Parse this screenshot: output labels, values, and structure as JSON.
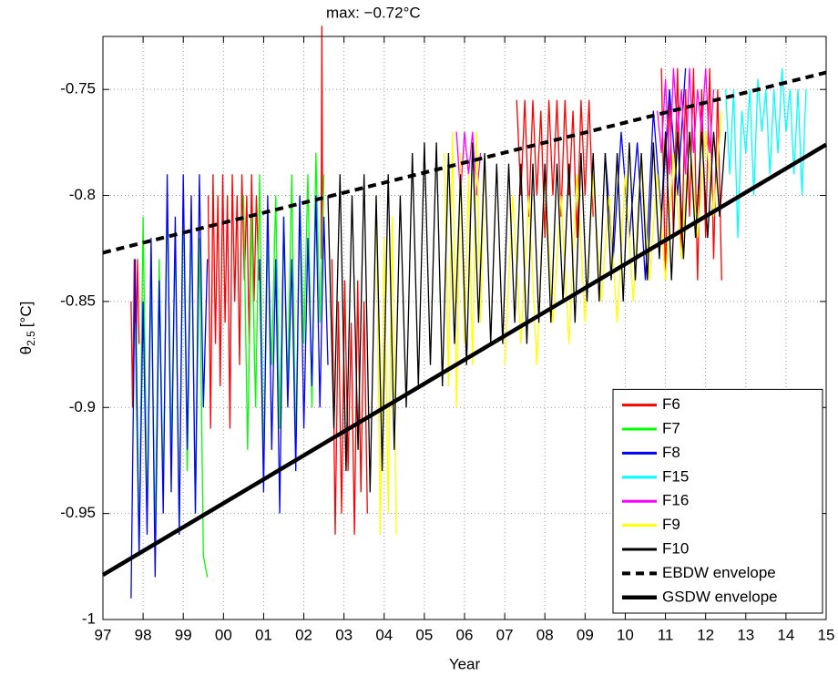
{
  "chart_data": {
    "type": "line",
    "xlabel": "Year",
    "ylabel": "θ",
    "ylabel_sub": "2.5",
    "ylabel_unit": "[°C]",
    "annotation": "max: −0.72°C",
    "grid": true,
    "legend": "lower right",
    "xlim": [
      1997,
      2015
    ],
    "ylim": [
      -1,
      -0.725
    ],
    "xticks": [
      {
        "value": 1997,
        "label": "97"
      },
      {
        "value": 1998,
        "label": "98"
      },
      {
        "value": 1999,
        "label": "99"
      },
      {
        "value": 2000,
        "label": "00"
      },
      {
        "value": 2001,
        "label": "01"
      },
      {
        "value": 2002,
        "label": "02"
      },
      {
        "value": 2003,
        "label": "03"
      },
      {
        "value": 2004,
        "label": "04"
      },
      {
        "value": 2005,
        "label": "05"
      },
      {
        "value": 2006,
        "label": "06"
      },
      {
        "value": 2007,
        "label": "07"
      },
      {
        "value": 2008,
        "label": "08"
      },
      {
        "value": 2009,
        "label": "09"
      },
      {
        "value": 2010,
        "label": "10"
      },
      {
        "value": 2011,
        "label": "11"
      },
      {
        "value": 2012,
        "label": "12"
      },
      {
        "value": 2013,
        "label": "13"
      },
      {
        "value": 2014,
        "label": "14"
      },
      {
        "value": 2015,
        "label": "15"
      }
    ],
    "yticks": [
      -1,
      -0.95,
      -0.9,
      -0.85,
      -0.8,
      -0.75
    ],
    "series": [
      {
        "name": "F6",
        "color": "#ff0000",
        "style": "solid",
        "x": [
          1997.7,
          1997.74,
          1997.78,
          1997.82,
          1997.86,
          1997.9,
          null,
          1999.62,
          1999.68,
          1999.74,
          1999.8,
          1999.86,
          1999.92,
          1999.98,
          2000.04,
          2000.1,
          2000.16,
          2000.22,
          2000.28,
          2000.34,
          2000.4,
          2000.46,
          2000.52,
          2000.58,
          2000.64,
          2000.7,
          2000.76,
          2000.82,
          2000.88,
          null,
          2002.43,
          2002.45,
          2002.47,
          null,
          2002.7,
          2002.78,
          2002.86,
          2002.94,
          2003.02,
          2003.1,
          2003.18,
          2003.26,
          2003.34,
          2003.42,
          2003.5,
          2003.58,
          null,
          2007.3,
          2007.4,
          2007.5,
          2007.6,
          2007.7,
          2007.8,
          2007.9,
          2008.0,
          2008.1,
          2008.2,
          2008.3,
          2008.4,
          2008.5,
          2008.6,
          2008.7,
          2008.8,
          2008.9,
          2009.0,
          2009.1,
          2009.2,
          null,
          2010.9,
          2011.0,
          2011.1,
          2011.2,
          2011.3,
          2011.4,
          2011.5,
          2011.6,
          2011.7,
          2011.8,
          2011.9,
          2012.0,
          2012.1,
          2012.2,
          2012.3,
          2012.4
        ],
        "values": [
          -0.85,
          -0.9,
          -0.83,
          -0.88,
          -0.83,
          -0.87,
          null,
          -0.8,
          -0.91,
          -0.79,
          -0.87,
          -0.8,
          -0.89,
          -0.79,
          -0.86,
          -0.8,
          -0.91,
          -0.79,
          -0.85,
          -0.8,
          -0.88,
          -0.79,
          -0.84,
          -0.8,
          -0.87,
          -0.79,
          -0.85,
          -0.8,
          -0.84,
          null,
          -0.83,
          -0.72,
          -0.83,
          null,
          -0.83,
          -0.96,
          -0.85,
          -0.95,
          -0.84,
          -0.93,
          -0.86,
          -0.96,
          -0.84,
          -0.94,
          -0.85,
          -0.95,
          null,
          -0.755,
          -0.8,
          -0.755,
          -0.81,
          -0.755,
          -0.8,
          -0.76,
          -0.82,
          -0.755,
          -0.8,
          -0.755,
          -0.81,
          -0.755,
          -0.8,
          -0.76,
          -0.82,
          -0.755,
          -0.8,
          -0.755,
          -0.81,
          null,
          -0.74,
          -0.84,
          -0.75,
          -0.82,
          -0.74,
          -0.83,
          -0.75,
          -0.81,
          -0.74,
          -0.84,
          -0.75,
          -0.82,
          -0.74,
          -0.83,
          -0.75,
          -0.84
        ]
      },
      {
        "name": "F7",
        "color": "#00ff00",
        "style": "solid",
        "x": [
          1997.8,
          1997.9,
          1998.0,
          1998.1,
          1998.2,
          1998.3,
          1998.4,
          1998.5,
          1998.6,
          1998.7,
          1998.8,
          1998.9,
          1999.0,
          1999.1,
          1999.2,
          1999.3,
          1999.4,
          1999.5,
          1999.6,
          null,
          2000.5,
          2000.6,
          2000.7,
          2000.8,
          2000.9,
          2001.0,
          2001.1,
          2001.2,
          2001.3,
          2001.4,
          2001.5,
          2001.6,
          2001.7,
          2001.8,
          2001.9,
          2002.0,
          2002.1,
          2002.2,
          2002.3,
          2002.4,
          2002.5
        ],
        "values": [
          -0.86,
          -0.97,
          -0.81,
          -0.95,
          -0.84,
          -0.96,
          -0.83,
          -0.94,
          -0.8,
          -0.92,
          -0.82,
          -0.96,
          -0.8,
          -0.93,
          -0.81,
          -0.95,
          -0.82,
          -0.97,
          -0.98,
          null,
          -0.8,
          -0.92,
          -0.81,
          -0.9,
          -0.79,
          -0.93,
          -0.82,
          -0.88,
          -0.8,
          -0.91,
          -0.81,
          -0.89,
          -0.79,
          -0.92,
          -0.8,
          -0.87,
          -0.79,
          -0.9,
          -0.78,
          -0.86,
          -0.79
        ]
      },
      {
        "name": "F8",
        "color": "#0000ff",
        "style": "solid",
        "x": [
          1997.7,
          1997.8,
          1997.9,
          1998.0,
          1998.1,
          1998.2,
          1998.3,
          1998.4,
          1998.5,
          1998.6,
          1998.7,
          1998.8,
          1998.9,
          1999.0,
          1999.1,
          1999.2,
          1999.3,
          1999.4,
          1999.5,
          1999.6,
          null,
          2000.9,
          2001.0,
          2001.1,
          2001.2,
          2001.3,
          2001.4,
          2001.5,
          2001.6,
          2001.7,
          2001.8,
          2001.9,
          2002.0,
          2002.1,
          2002.2,
          2002.3,
          2002.4,
          2002.5,
          2002.6,
          null,
          2009.5,
          2009.7,
          2009.9,
          2010.1,
          2010.3,
          2010.5,
          2010.7,
          2010.9,
          2011.1,
          2011.3,
          2011.5
        ],
        "values": [
          -0.99,
          -0.83,
          -0.97,
          -0.85,
          -0.96,
          -0.82,
          -0.98,
          -0.84,
          -0.95,
          -0.79,
          -0.94,
          -0.81,
          -0.96,
          -0.79,
          -0.92,
          -0.8,
          -0.95,
          -0.79,
          -0.9,
          -0.83,
          null,
          -0.83,
          -0.94,
          -0.8,
          -0.92,
          -0.83,
          -0.95,
          -0.81,
          -0.9,
          -0.83,
          -0.93,
          -0.8,
          -0.91,
          -0.82,
          -0.89,
          -0.8,
          -0.9,
          -0.81,
          -0.88,
          null,
          -0.78,
          -0.83,
          -0.77,
          -0.82,
          -0.775,
          -0.84,
          -0.76,
          -0.81,
          -0.75,
          -0.8,
          -0.74
        ]
      },
      {
        "name": "F15",
        "color": "#00ffff",
        "style": "solid",
        "x": [
          2012.5,
          2012.6,
          2012.7,
          2012.8,
          2012.9,
          2013.0,
          2013.1,
          2013.2,
          2013.3,
          2013.4,
          2013.5,
          2013.6,
          2013.7,
          2013.8,
          2013.9,
          2014.0,
          2014.1,
          2014.2,
          2014.3,
          2014.4,
          2014.5
        ],
        "values": [
          -0.75,
          -0.79,
          -0.75,
          -0.82,
          -0.76,
          -0.78,
          -0.75,
          -0.8,
          -0.745,
          -0.77,
          -0.75,
          -0.79,
          -0.75,
          -0.78,
          -0.74,
          -0.77,
          -0.75,
          -0.79,
          -0.75,
          -0.8,
          -0.75
        ]
      },
      {
        "name": "F16",
        "color": "#ff00ff",
        "style": "solid",
        "x": [
          2005.8,
          2005.9,
          2006.0,
          2006.1,
          2006.2,
          2006.3,
          2006.4,
          null,
          2010.8,
          2010.9,
          2011.0,
          2011.1,
          2011.2,
          2011.3,
          2011.4,
          2011.5,
          2011.6,
          2011.7,
          2011.8,
          2011.9,
          2012.0,
          2012.1,
          2012.2
        ],
        "values": [
          -0.77,
          -0.8,
          -0.77,
          -0.79,
          -0.77,
          -0.8,
          -0.78,
          null,
          -0.76,
          -0.78,
          -0.745,
          -0.79,
          -0.74,
          -0.77,
          -0.75,
          -0.79,
          -0.74,
          -0.78,
          -0.75,
          -0.77,
          -0.74,
          -0.78,
          -0.75
        ]
      },
      {
        "name": "F9",
        "color": "#ffff00",
        "style": "solid",
        "x": [
          2003.8,
          2003.9,
          2004.0,
          2004.1,
          2004.2,
          2004.3,
          null,
          2005.5,
          2005.6,
          2005.7,
          2005.8,
          2005.9,
          2006.0,
          2006.1,
          2006.2,
          2006.3,
          2006.4,
          2006.5,
          null,
          2007.0,
          2007.2,
          2007.4,
          2007.6,
          2007.8,
          2008.0,
          2008.2,
          2008.4,
          2008.6,
          2008.8,
          2009.0,
          2009.2,
          2009.4,
          2009.6,
          2009.8,
          2010.0,
          2010.2,
          2010.4,
          2010.6,
          2010.8,
          2011.0,
          2011.2,
          2011.4,
          2011.6,
          2011.8,
          2012.0,
          2012.2,
          2012.4
        ],
        "values": [
          -0.8,
          -0.96,
          -0.82,
          -0.95,
          -0.81,
          -0.96,
          null,
          -0.78,
          -0.89,
          -0.77,
          -0.9,
          -0.78,
          -0.87,
          -0.79,
          -0.88,
          -0.77,
          -0.86,
          -0.78,
          null,
          -0.88,
          -0.8,
          -0.87,
          -0.8,
          -0.88,
          -0.79,
          -0.86,
          -0.8,
          -0.87,
          -0.79,
          -0.86,
          -0.79,
          -0.85,
          -0.8,
          -0.86,
          -0.79,
          -0.85,
          -0.78,
          -0.84,
          -0.79,
          -0.84,
          -0.78,
          -0.83,
          -0.77,
          -0.82,
          -0.77,
          -0.81,
          -0.76
        ]
      },
      {
        "name": "F10",
        "color": "#000000",
        "style": "solid",
        "x": [
          2002.6,
          2002.75,
          2002.9,
          2003.05,
          2003.2,
          2003.35,
          2003.5,
          2003.65,
          2003.8,
          2003.95,
          2004.1,
          2004.25,
          2004.4,
          2004.55,
          2004.7,
          2004.85,
          2005.0,
          2005.15,
          2005.3,
          2005.45,
          2005.6,
          2005.75,
          2005.9,
          2006.05,
          2006.2,
          2006.35,
          2006.5,
          2006.65,
          2006.8,
          2006.95,
          2007.1,
          2007.25,
          2007.4,
          2007.55,
          2007.7,
          2007.85,
          2008.0,
          2008.15,
          2008.3,
          2008.45,
          2008.6,
          2008.75,
          2008.9,
          2009.05,
          2009.2,
          2009.35,
          2009.5,
          2009.65,
          2009.8,
          2009.95,
          2010.1,
          2010.25,
          2010.4,
          2010.55,
          2010.7,
          2010.85,
          2011.0,
          2011.15,
          2011.3,
          2011.45,
          2011.6,
          2011.75,
          2011.9,
          2012.05,
          2012.2,
          2012.35,
          2012.5
        ],
        "values": [
          -0.8,
          -0.91,
          -0.79,
          -0.93,
          -0.8,
          -0.92,
          -0.79,
          -0.94,
          -0.8,
          -0.93,
          -0.79,
          -0.92,
          -0.8,
          -0.9,
          -0.78,
          -0.89,
          -0.775,
          -0.88,
          -0.775,
          -0.89,
          -0.78,
          -0.87,
          -0.79,
          -0.88,
          -0.775,
          -0.86,
          -0.78,
          -0.87,
          -0.785,
          -0.87,
          -0.785,
          -0.86,
          -0.785,
          -0.87,
          -0.785,
          -0.86,
          -0.785,
          -0.86,
          -0.785,
          -0.85,
          -0.785,
          -0.86,
          -0.78,
          -0.85,
          -0.78,
          -0.85,
          -0.78,
          -0.84,
          -0.78,
          -0.85,
          -0.775,
          -0.84,
          -0.78,
          -0.84,
          -0.775,
          -0.83,
          -0.77,
          -0.84,
          -0.77,
          -0.83,
          -0.77,
          -0.82,
          -0.77,
          -0.82,
          -0.77,
          -0.81,
          -0.77
        ]
      },
      {
        "name": "EBDW envelope",
        "color": "#000000",
        "style": "dashed",
        "x": [
          1997,
          2015
        ],
        "values": [
          -0.827,
          -0.742
        ]
      },
      {
        "name": "GSDW envelope",
        "color": "#000000",
        "style": "thick",
        "x": [
          1997,
          2015
        ],
        "values": [
          -0.979,
          -0.776
        ]
      }
    ]
  }
}
